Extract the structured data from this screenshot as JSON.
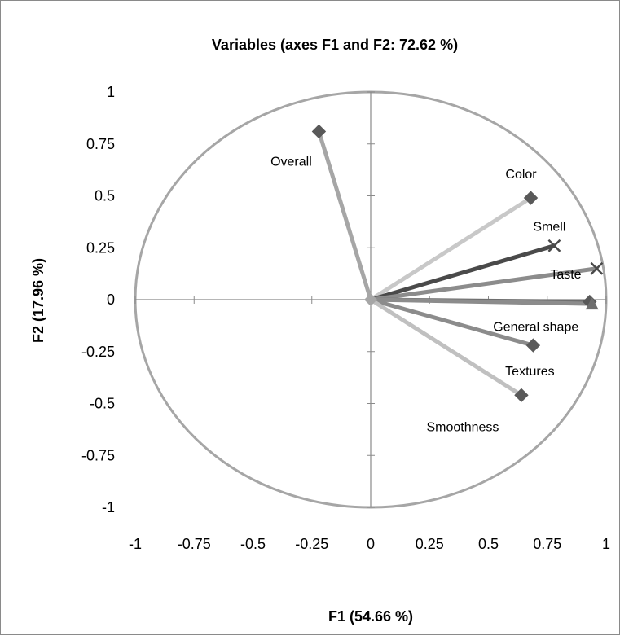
{
  "chart_data": {
    "type": "scatter",
    "subtype": "pca-correlation-circle",
    "title": "Variables (axes F1 and F2: 72.62 %)",
    "xlabel": "F1 (54.66 %)",
    "ylabel": "F2 (17.96 %)",
    "xlim": [
      -1,
      1
    ],
    "ylim": [
      -1,
      1
    ],
    "x_ticks": [
      "-1",
      "-0.75",
      "-0.5",
      "-0.25",
      "0",
      "0.25",
      "0.5",
      "0.75",
      "1"
    ],
    "y_ticks": [
      "1",
      "0.75",
      "0.5",
      "0.25",
      "0",
      "-0.25",
      "-0.5",
      "-0.75",
      "-1"
    ],
    "x_tick_values": [
      -1,
      -0.75,
      -0.5,
      -0.25,
      0,
      0.25,
      0.5,
      0.75,
      1
    ],
    "y_tick_values": [
      1,
      0.75,
      0.5,
      0.25,
      0,
      -0.25,
      -0.5,
      -0.75,
      -1
    ],
    "grid": false,
    "legend": "none",
    "unit_circle": true,
    "circle_color": "#a6a6a6",
    "points": [
      {
        "label": "Overall",
        "x": -0.22,
        "y": 0.81,
        "color": "#a6a6a6",
        "marker": "diamond",
        "label_pos": "below-left"
      },
      {
        "label": "Color",
        "x": 0.68,
        "y": 0.49,
        "color": "#c8c8c8",
        "marker": "diamond",
        "label_pos": "above"
      },
      {
        "label": "Smell",
        "x": 0.78,
        "y": 0.26,
        "color": "#4a4a4a",
        "marker": "cross",
        "label_pos": "above"
      },
      {
        "label": "Taste",
        "x": 0.96,
        "y": 0.15,
        "color": "#8c8c8c",
        "marker": "cross",
        "label_pos": "left"
      },
      {
        "label": "General shape",
        "x": 0.93,
        "y": -0.01,
        "color": "#6e6e6e",
        "marker": "diamond",
        "label_pos": "below"
      },
      {
        "label": "",
        "x": 0.94,
        "y": -0.02,
        "color": "#8c8c8c",
        "marker": "triangle",
        "label_pos": "none"
      },
      {
        "label": "Textures",
        "x": 0.69,
        "y": -0.22,
        "color": "#8c8c8c",
        "marker": "diamond",
        "label_pos": "below"
      },
      {
        "label": "Smoothness",
        "x": 0.64,
        "y": -0.46,
        "color": "#c0c0c0",
        "marker": "diamond",
        "label_pos": "below-left"
      }
    ]
  }
}
